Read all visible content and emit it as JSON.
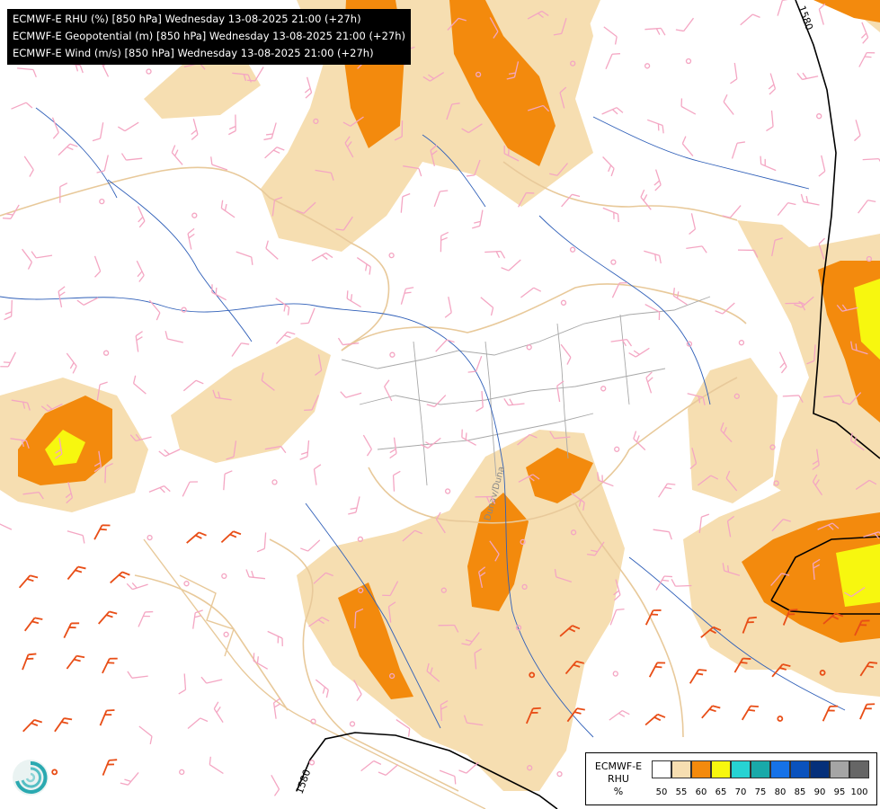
{
  "header": {
    "line1": "ECMWF-E RHU (%) [850 hPa] Wednesday 13-08-2025 21:00 (+27h)",
    "line2": "ECMWF-E Geopotential (m) [850 hPa] Wednesday 13-08-2025 21:00 (+27h)",
    "line3": "ECMWF-E Wind (m/s) [850 hPa] Wednesday 13-08-2025 21:00 (+27h)"
  },
  "map": {
    "contour_labels": [
      "1580",
      "1580"
    ],
    "river_label": "Dunav/Duna",
    "colors": {
      "rh_50_55": "#f6deb1",
      "rh_55_60": "#f38a0d",
      "rh_60_65": "#f7f70f",
      "wind_light": "#f4a6c3",
      "wind_strong": "#e84d16",
      "borders": "#e8c99a",
      "rivers": "#2f5fb8"
    }
  },
  "legend": {
    "title_line1": "ECMWF-E",
    "title_line2": "RHU",
    "title_line3": "%",
    "swatches": [
      "#ffffff",
      "#f6deb1",
      "#f38a0d",
      "#f7f70f",
      "#27d3d3",
      "#19a9a9",
      "#1672e8",
      "#0a52bd",
      "#05307a",
      "#a5a5a5",
      "#666666"
    ],
    "ticks": [
      "50",
      "55",
      "60",
      "65",
      "70",
      "75",
      "80",
      "85",
      "90",
      "95",
      "100"
    ]
  },
  "logo": {
    "icon": "ecmwf-swirl-icon"
  }
}
